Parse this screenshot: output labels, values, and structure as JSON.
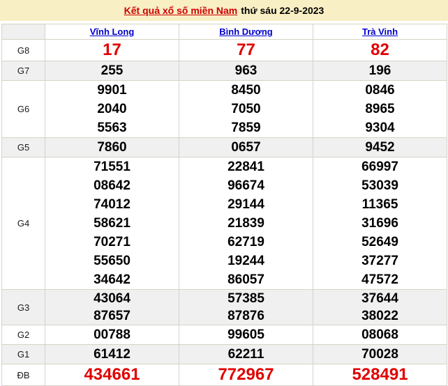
{
  "title": {
    "link_text": "Kết quả xổ số miền Nam",
    "date_text": "thứ sáu 22-9-2023"
  },
  "columns": [
    "Vĩnh Long",
    "Bình Dương",
    "Trà Vinh"
  ],
  "rows": [
    {
      "label": "G8",
      "highlight": true,
      "cells": [
        [
          "17"
        ],
        [
          "77"
        ],
        [
          "82"
        ]
      ]
    },
    {
      "label": "G7",
      "highlight": false,
      "cells": [
        [
          "255"
        ],
        [
          "963"
        ],
        [
          "196"
        ]
      ]
    },
    {
      "label": "G6",
      "highlight": false,
      "cells": [
        [
          "9901",
          "2040",
          "5563"
        ],
        [
          "8450",
          "7050",
          "7859"
        ],
        [
          "0846",
          "8965",
          "9304"
        ]
      ]
    },
    {
      "label": "G5",
      "highlight": false,
      "cells": [
        [
          "7860"
        ],
        [
          "0657"
        ],
        [
          "9452"
        ]
      ]
    },
    {
      "label": "G4",
      "highlight": false,
      "cells": [
        [
          "71551",
          "08642",
          "74012",
          "58621",
          "70271",
          "55650",
          "34642"
        ],
        [
          "22841",
          "96674",
          "29144",
          "21839",
          "62719",
          "19244",
          "86057"
        ],
        [
          "66997",
          "53039",
          "11365",
          "31696",
          "52649",
          "37277",
          "47572"
        ]
      ]
    },
    {
      "label": "G3",
      "highlight": false,
      "cells": [
        [
          "43064",
          "87657"
        ],
        [
          "57385",
          "87876"
        ],
        [
          "37644",
          "38022"
        ]
      ]
    },
    {
      "label": "G2",
      "highlight": false,
      "cells": [
        [
          "00788"
        ],
        [
          "99605"
        ],
        [
          "08068"
        ]
      ]
    },
    {
      "label": "G1",
      "highlight": false,
      "cells": [
        [
          "61412"
        ],
        [
          "62211"
        ],
        [
          "70028"
        ]
      ]
    },
    {
      "label": "ĐB",
      "highlight": true,
      "cells": [
        [
          "434661"
        ],
        [
          "772967"
        ],
        [
          "528491"
        ]
      ]
    }
  ],
  "colors": {
    "accent_red": "#e00000",
    "title_link_red": "#cc0000",
    "link_blue": "#0000cc",
    "title_bg": "#f9efc5",
    "stripe_gray": "#f0f0f0",
    "border": "#d6d2c6"
  }
}
